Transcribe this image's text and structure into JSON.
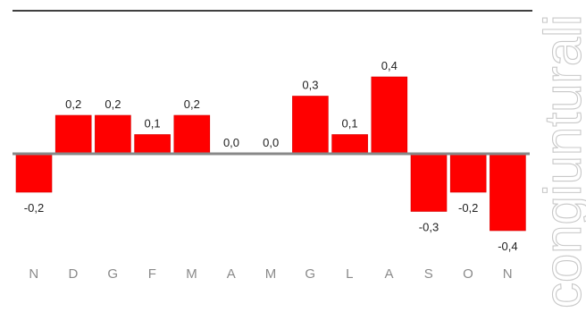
{
  "side_text": "congiunturali",
  "colors": {
    "bar": "#ff0000",
    "bar_edge": "#d40000",
    "baseline": "#888888",
    "top_rule": "#000000",
    "label": "#222222",
    "tick": "#8a8a8a",
    "side_text": "#c8c8c8"
  },
  "chart_data": {
    "type": "bar",
    "categories": [
      "N",
      "D",
      "G",
      "F",
      "M",
      "A",
      "M",
      "G",
      "L",
      "A",
      "S",
      "O",
      "N"
    ],
    "values": [
      -0.2,
      0.2,
      0.2,
      0.1,
      0.2,
      0.0,
      0.0,
      0.3,
      0.1,
      0.4,
      -0.3,
      -0.2,
      -0.4
    ],
    "value_labels": [
      "-0,2",
      "0,2",
      "0,2",
      "0,1",
      "0,2",
      "0,0",
      "0,0",
      "0,3",
      "0,1",
      "0,4",
      "-0,3",
      "-0,2",
      "-0,4"
    ],
    "title": "",
    "xlabel": "",
    "ylabel": "",
    "ylim": [
      -0.4,
      0.4
    ],
    "grid": false,
    "legend": "none"
  }
}
